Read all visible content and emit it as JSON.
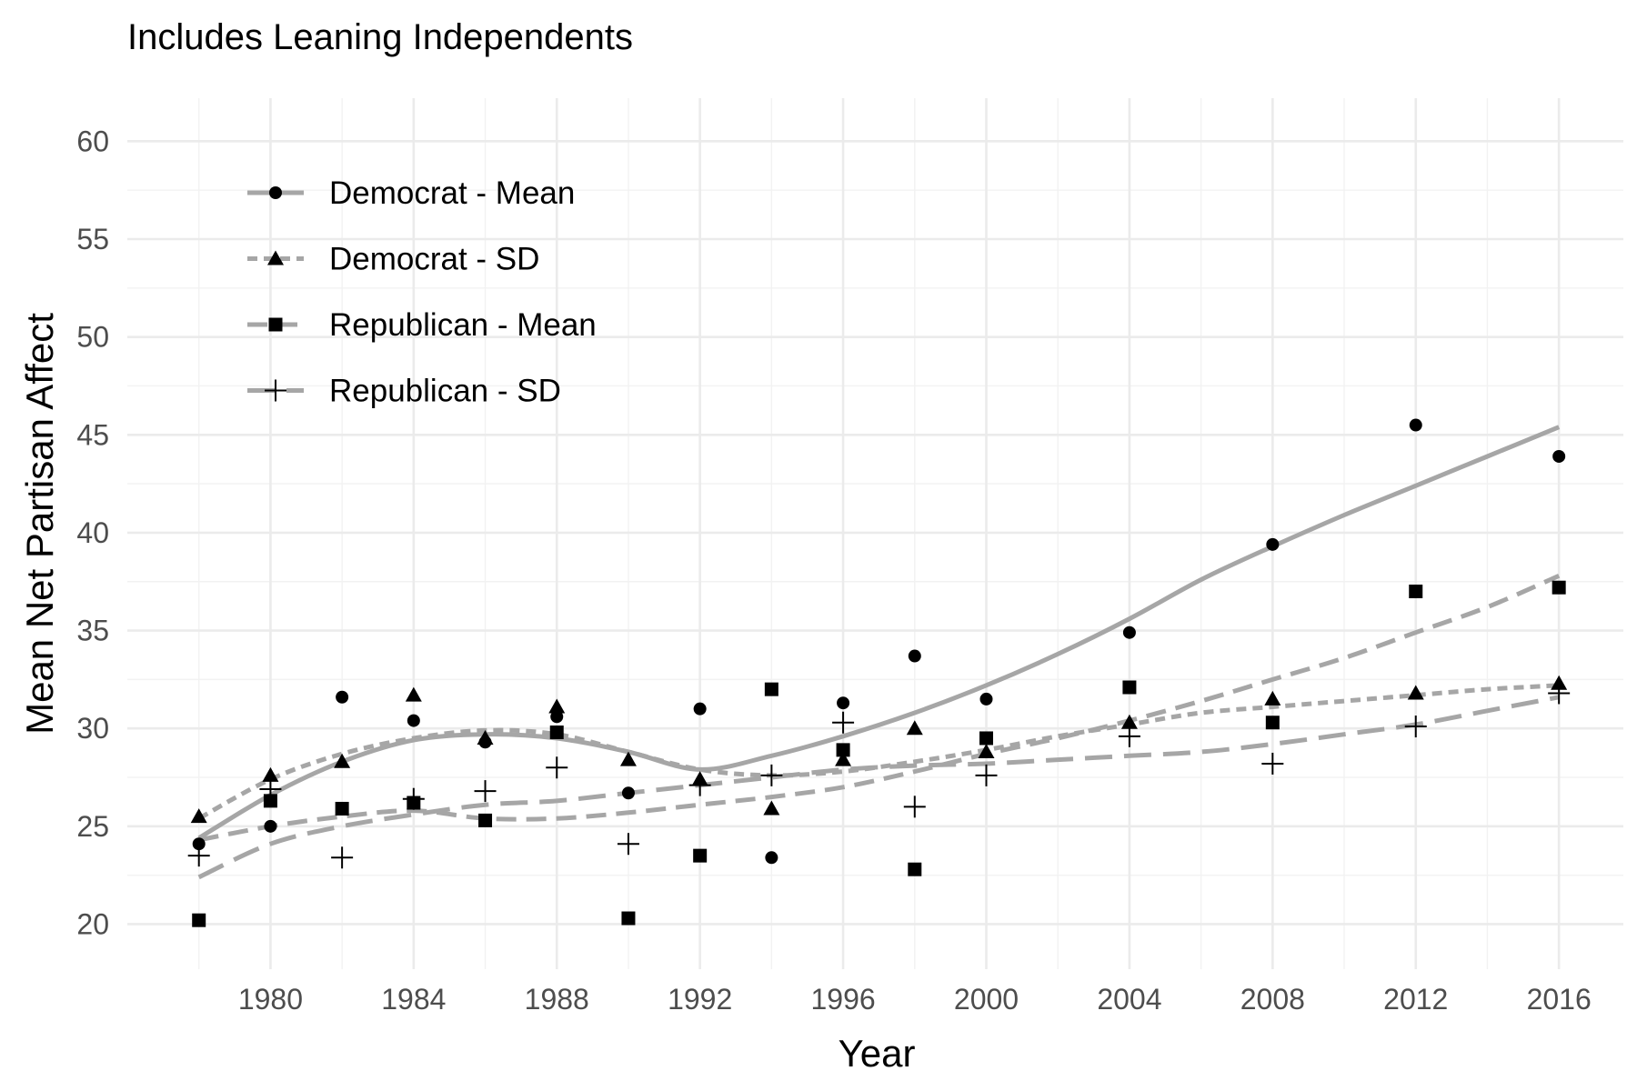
{
  "chart_data": {
    "type": "scatter",
    "title": "Includes Leaning Independents",
    "xlabel": "Year",
    "ylabel": "Mean Net Partisan Affect",
    "xlim": [
      1976,
      2017.8
    ],
    "ylim": [
      17.7,
      62.2
    ],
    "x_ticks": [
      1980,
      1984,
      1988,
      1992,
      1996,
      2000,
      2004,
      2008,
      2012,
      2016
    ],
    "y_ticks": [
      20,
      25,
      30,
      35,
      40,
      45,
      50,
      55,
      60
    ],
    "grid": true,
    "legend_position": "top-left",
    "series": [
      {
        "name": "Democrat - Mean",
        "marker": "circle",
        "line_style": "solid",
        "points": [
          {
            "x": 1978,
            "y": 24.1
          },
          {
            "x": 1980,
            "y": 25.0
          },
          {
            "x": 1982,
            "y": 31.6
          },
          {
            "x": 1984,
            "y": 30.4
          },
          {
            "x": 1986,
            "y": 29.3
          },
          {
            "x": 1988,
            "y": 30.6
          },
          {
            "x": 1990,
            "y": 26.7
          },
          {
            "x": 1992,
            "y": 31.0
          },
          {
            "x": 1994,
            "y": 23.4
          },
          {
            "x": 1996,
            "y": 31.3
          },
          {
            "x": 1998,
            "y": 33.7
          },
          {
            "x": 2000,
            "y": 31.5
          },
          {
            "x": 2004,
            "y": 34.9
          },
          {
            "x": 2008,
            "y": 39.4
          },
          {
            "x": 2012,
            "y": 45.5
          },
          {
            "x": 2016,
            "y": 43.9
          }
        ],
        "trend": [
          {
            "x": 1978,
            "y": 24.4
          },
          {
            "x": 1980,
            "y": 26.6
          },
          {
            "x": 1982,
            "y": 28.3
          },
          {
            "x": 1984,
            "y": 29.4
          },
          {
            "x": 1986,
            "y": 29.7
          },
          {
            "x": 1988,
            "y": 29.5
          },
          {
            "x": 1990,
            "y": 28.8
          },
          {
            "x": 1992,
            "y": 27.9
          },
          {
            "x": 1994,
            "y": 28.6
          },
          {
            "x": 1996,
            "y": 29.6
          },
          {
            "x": 1998,
            "y": 30.8
          },
          {
            "x": 2000,
            "y": 32.2
          },
          {
            "x": 2002,
            "y": 33.8
          },
          {
            "x": 2004,
            "y": 35.6
          },
          {
            "x": 2006,
            "y": 37.6
          },
          {
            "x": 2008,
            "y": 39.3
          },
          {
            "x": 2010,
            "y": 40.9
          },
          {
            "x": 2012,
            "y": 42.4
          },
          {
            "x": 2014,
            "y": 43.9
          },
          {
            "x": 2016,
            "y": 45.4
          }
        ]
      },
      {
        "name": "Democrat - SD",
        "marker": "triangle",
        "line_style": "dotted",
        "points": [
          {
            "x": 1978,
            "y": 25.5
          },
          {
            "x": 1980,
            "y": 27.6
          },
          {
            "x": 1982,
            "y": 28.3
          },
          {
            "x": 1984,
            "y": 31.7
          },
          {
            "x": 1986,
            "y": 29.5
          },
          {
            "x": 1988,
            "y": 31.1
          },
          {
            "x": 1990,
            "y": 28.4
          },
          {
            "x": 1992,
            "y": 27.4
          },
          {
            "x": 1994,
            "y": 25.9
          },
          {
            "x": 1996,
            "y": 28.4
          },
          {
            "x": 1998,
            "y": 30.0
          },
          {
            "x": 2000,
            "y": 28.8
          },
          {
            "x": 2004,
            "y": 30.3
          },
          {
            "x": 2008,
            "y": 31.5
          },
          {
            "x": 2012,
            "y": 31.8
          },
          {
            "x": 2016,
            "y": 32.3
          }
        ],
        "trend": [
          {
            "x": 1978,
            "y": 25.4
          },
          {
            "x": 1980,
            "y": 27.4
          },
          {
            "x": 1982,
            "y": 28.7
          },
          {
            "x": 1984,
            "y": 29.5
          },
          {
            "x": 1986,
            "y": 29.9
          },
          {
            "x": 1988,
            "y": 29.7
          },
          {
            "x": 1990,
            "y": 28.8
          },
          {
            "x": 1992,
            "y": 27.9
          },
          {
            "x": 1994,
            "y": 27.6
          },
          {
            "x": 1996,
            "y": 27.8
          },
          {
            "x": 1998,
            "y": 28.3
          },
          {
            "x": 2000,
            "y": 28.9
          },
          {
            "x": 2002,
            "y": 29.6
          },
          {
            "x": 2004,
            "y": 30.2
          },
          {
            "x": 2006,
            "y": 30.8
          },
          {
            "x": 2008,
            "y": 31.1
          },
          {
            "x": 2010,
            "y": 31.4
          },
          {
            "x": 2012,
            "y": 31.7
          },
          {
            "x": 2014,
            "y": 32.0
          },
          {
            "x": 2016,
            "y": 32.2
          }
        ]
      },
      {
        "name": "Republican - Mean",
        "marker": "square",
        "line_style": "dashed",
        "points": [
          {
            "x": 1978,
            "y": 20.2
          },
          {
            "x": 1980,
            "y": 26.3
          },
          {
            "x": 1982,
            "y": 25.9
          },
          {
            "x": 1984,
            "y": 26.2
          },
          {
            "x": 1986,
            "y": 25.3
          },
          {
            "x": 1988,
            "y": 29.8
          },
          {
            "x": 1990,
            "y": 20.3
          },
          {
            "x": 1992,
            "y": 23.5
          },
          {
            "x": 1994,
            "y": 32.0
          },
          {
            "x": 1996,
            "y": 28.9
          },
          {
            "x": 1998,
            "y": 22.8
          },
          {
            "x": 2000,
            "y": 29.5
          },
          {
            "x": 2004,
            "y": 32.1
          },
          {
            "x": 2008,
            "y": 30.3
          },
          {
            "x": 2012,
            "y": 37.0
          },
          {
            "x": 2016,
            "y": 37.2
          }
        ],
        "trend": [
          {
            "x": 1978,
            "y": 24.3
          },
          {
            "x": 1980,
            "y": 25.0
          },
          {
            "x": 1982,
            "y": 25.5
          },
          {
            "x": 1984,
            "y": 25.8
          },
          {
            "x": 1986,
            "y": 25.4
          },
          {
            "x": 1988,
            "y": 25.4
          },
          {
            "x": 1990,
            "y": 25.7
          },
          {
            "x": 1992,
            "y": 26.1
          },
          {
            "x": 1994,
            "y": 26.5
          },
          {
            "x": 1996,
            "y": 27.0
          },
          {
            "x": 1998,
            "y": 27.8
          },
          {
            "x": 2000,
            "y": 28.7
          },
          {
            "x": 2002,
            "y": 29.5
          },
          {
            "x": 2004,
            "y": 30.4
          },
          {
            "x": 2006,
            "y": 31.4
          },
          {
            "x": 2008,
            "y": 32.5
          },
          {
            "x": 2010,
            "y": 33.6
          },
          {
            "x": 2012,
            "y": 34.9
          },
          {
            "x": 2014,
            "y": 36.2
          },
          {
            "x": 2016,
            "y": 37.8
          }
        ]
      },
      {
        "name": "Republican - SD",
        "marker": "plus",
        "line_style": "longdash",
        "points": [
          {
            "x": 1978,
            "y": 23.5
          },
          {
            "x": 1980,
            "y": 26.9
          },
          {
            "x": 1982,
            "y": 23.4
          },
          {
            "x": 1984,
            "y": 26.4
          },
          {
            "x": 1986,
            "y": 26.8
          },
          {
            "x": 1988,
            "y": 28.0
          },
          {
            "x": 1990,
            "y": 24.1
          },
          {
            "x": 1992,
            "y": 27.1
          },
          {
            "x": 1994,
            "y": 27.6
          },
          {
            "x": 1996,
            "y": 30.3
          },
          {
            "x": 1998,
            "y": 26.0
          },
          {
            "x": 2000,
            "y": 27.6
          },
          {
            "x": 2004,
            "y": 29.6
          },
          {
            "x": 2008,
            "y": 28.2
          },
          {
            "x": 2012,
            "y": 30.1
          },
          {
            "x": 2016,
            "y": 31.8
          }
        ],
        "trend": [
          {
            "x": 1978,
            "y": 22.4
          },
          {
            "x": 1980,
            "y": 24.1
          },
          {
            "x": 1982,
            "y": 25.0
          },
          {
            "x": 1984,
            "y": 25.6
          },
          {
            "x": 1986,
            "y": 26.1
          },
          {
            "x": 1988,
            "y": 26.3
          },
          {
            "x": 1990,
            "y": 26.7
          },
          {
            "x": 1992,
            "y": 27.1
          },
          {
            "x": 1994,
            "y": 27.5
          },
          {
            "x": 1996,
            "y": 27.9
          },
          {
            "x": 1998,
            "y": 28.1
          },
          {
            "x": 2000,
            "y": 28.2
          },
          {
            "x": 2002,
            "y": 28.4
          },
          {
            "x": 2004,
            "y": 28.6
          },
          {
            "x": 2006,
            "y": 28.8
          },
          {
            "x": 2008,
            "y": 29.2
          },
          {
            "x": 2010,
            "y": 29.7
          },
          {
            "x": 2012,
            "y": 30.2
          },
          {
            "x": 2014,
            "y": 30.9
          },
          {
            "x": 2016,
            "y": 31.6
          }
        ]
      }
    ]
  },
  "colors": {
    "trend_line": "#a6a6a6",
    "marker": "#000000",
    "grid_major": "#ebebeb",
    "grid_minor": "#f2f2f2",
    "tick_text": "#4d4d4d",
    "background": "#ffffff"
  }
}
